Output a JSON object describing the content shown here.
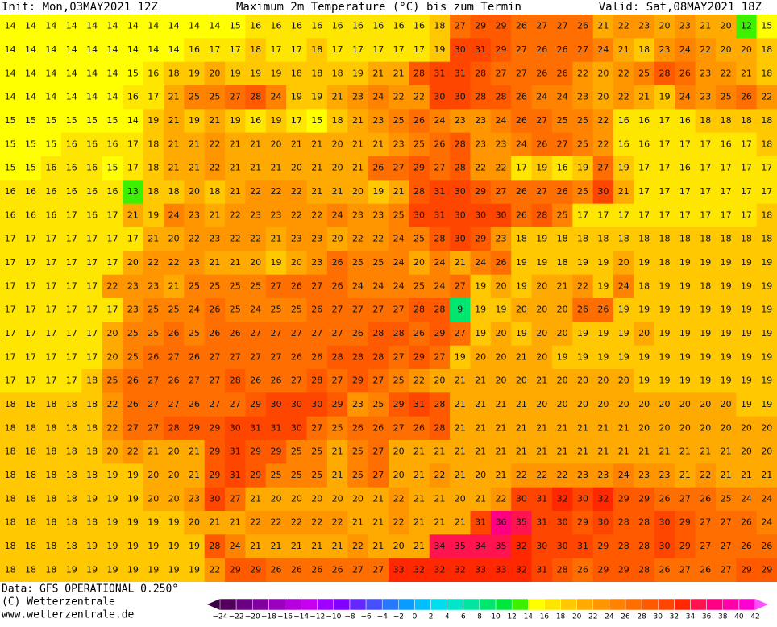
{
  "header": {
    "init": "Init: Mon,03MAY2021 12Z",
    "title": "Maximum 2m Temperature (°C) bis zum Termin",
    "valid": "Valid: Sat,08MAY2021 18Z"
  },
  "footer": {
    "data": "Data: GFS OPERATIONAL 0.250°",
    "copyright": "(C) Wetterzentrale",
    "url": "www.wetterzentrale.de"
  },
  "colorbar": {
    "labels": [
      "−24",
      "−22",
      "−20",
      "−18",
      "−16",
      "−14",
      "−12",
      "−10",
      "−8",
      "−6",
      "−4",
      "−2",
      "0",
      "2",
      "4",
      "6",
      "8",
      "10",
      "12",
      "14",
      "16",
      "18",
      "20",
      "22",
      "24",
      "26",
      "28",
      "30",
      "32",
      "34",
      "36",
      "38",
      "40",
      "42"
    ],
    "colors": [
      "#3c0046",
      "#50005a",
      "#6a0082",
      "#8200a0",
      "#9a00be",
      "#b400dc",
      "#c800f0",
      "#a000ff",
      "#8200ff",
      "#6428ff",
      "#4650ff",
      "#2878ff",
      "#0a9bff",
      "#00beff",
      "#00dcf0",
      "#00e6c8",
      "#00e6a0",
      "#00e66e",
      "#00e63c",
      "#3cf000",
      "#ffff00",
      "#ffe600",
      "#ffc800",
      "#ffaa00",
      "#ff9600",
      "#ff8200",
      "#ff6e00",
      "#ff5a00",
      "#ff4600",
      "#ff2800",
      "#ff1450",
      "#ff0082",
      "#ff00aa",
      "#ff00d2",
      "#ff50ff"
    ]
  },
  "map": {
    "rows": [
      [
        14,
        14,
        14,
        14,
        14,
        14,
        14,
        14,
        14,
        14,
        14,
        15,
        16,
        16,
        16,
        16,
        16,
        16,
        16,
        16,
        16,
        18,
        27,
        29,
        29,
        26,
        27,
        27,
        26,
        21,
        22,
        23,
        20,
        23,
        21,
        20,
        12,
        15
      ],
      [
        14,
        14,
        14,
        14,
        14,
        14,
        14,
        14,
        14,
        16,
        17,
        17,
        18,
        17,
        17,
        18,
        17,
        17,
        17,
        17,
        17,
        19,
        30,
        31,
        29,
        27,
        26,
        26,
        27,
        24,
        21,
        18,
        23,
        24,
        22,
        20,
        20,
        18
      ],
      [
        14,
        14,
        14,
        14,
        14,
        14,
        15,
        16,
        18,
        19,
        20,
        19,
        19,
        19,
        18,
        18,
        18,
        19,
        21,
        21,
        28,
        31,
        31,
        28,
        27,
        27,
        26,
        26,
        22,
        20,
        22,
        25,
        28,
        26,
        23,
        22,
        21,
        18
      ],
      [
        14,
        14,
        14,
        14,
        14,
        14,
        16,
        17,
        21,
        25,
        25,
        27,
        28,
        24,
        19,
        19,
        21,
        23,
        24,
        22,
        22,
        30,
        30,
        28,
        28,
        26,
        24,
        24,
        23,
        20,
        22,
        21,
        19,
        24,
        23,
        25,
        26,
        22
      ],
      [
        15,
        15,
        15,
        15,
        15,
        15,
        14,
        19,
        21,
        19,
        21,
        19,
        16,
        19,
        17,
        15,
        18,
        21,
        23,
        25,
        26,
        24,
        23,
        23,
        24,
        26,
        27,
        25,
        25,
        22,
        16,
        16,
        17,
        16,
        18,
        18,
        18,
        18
      ],
      [
        15,
        15,
        15,
        16,
        16,
        16,
        17,
        18,
        21,
        21,
        22,
        21,
        21,
        20,
        21,
        21,
        20,
        21,
        21,
        23,
        25,
        26,
        28,
        23,
        23,
        24,
        26,
        27,
        25,
        22,
        16,
        16,
        17,
        17,
        17,
        16,
        17,
        18
      ],
      [
        15,
        15,
        16,
        16,
        16,
        15,
        17,
        18,
        21,
        21,
        22,
        21,
        21,
        21,
        20,
        21,
        20,
        21,
        26,
        27,
        29,
        27,
        28,
        22,
        22,
        17,
        19,
        16,
        19,
        27,
        19,
        17,
        17,
        16,
        17,
        17,
        17,
        17
      ],
      [
        16,
        16,
        16,
        16,
        16,
        16,
        13,
        18,
        18,
        20,
        18,
        21,
        22,
        22,
        22,
        21,
        21,
        20,
        19,
        21,
        28,
        31,
        30,
        29,
        27,
        26,
        27,
        26,
        25,
        30,
        21,
        17,
        17,
        17,
        17,
        17,
        17,
        17
      ],
      [
        16,
        16,
        16,
        17,
        16,
        17,
        21,
        19,
        24,
        23,
        21,
        22,
        23,
        23,
        22,
        22,
        24,
        23,
        23,
        25,
        30,
        31,
        30,
        30,
        30,
        26,
        28,
        25,
        17,
        17,
        17,
        17,
        17,
        17,
        17,
        17,
        17,
        18
      ],
      [
        17,
        17,
        17,
        17,
        17,
        17,
        17,
        21,
        20,
        22,
        23,
        22,
        22,
        21,
        23,
        23,
        20,
        22,
        22,
        24,
        25,
        28,
        30,
        29,
        23,
        18,
        19,
        18,
        18,
        18,
        18,
        18,
        18,
        18,
        18,
        18,
        18,
        18
      ],
      [
        17,
        17,
        17,
        17,
        17,
        17,
        20,
        22,
        22,
        23,
        21,
        21,
        20,
        19,
        20,
        23,
        26,
        25,
        25,
        24,
        20,
        24,
        21,
        24,
        26,
        19,
        19,
        18,
        19,
        19,
        20,
        19,
        18,
        19,
        19,
        19,
        19,
        19
      ],
      [
        17,
        17,
        17,
        17,
        17,
        22,
        23,
        23,
        21,
        25,
        25,
        25,
        25,
        27,
        26,
        27,
        26,
        24,
        24,
        24,
        25,
        24,
        27,
        19,
        20,
        19,
        20,
        21,
        22,
        19,
        24,
        18,
        19,
        19,
        18,
        19,
        19,
        19
      ],
      [
        17,
        17,
        17,
        17,
        17,
        17,
        23,
        25,
        25,
        24,
        26,
        25,
        24,
        25,
        25,
        26,
        27,
        27,
        27,
        27,
        28,
        28,
        9,
        19,
        19,
        20,
        20,
        20,
        26,
        26,
        19,
        19,
        19,
        19,
        19,
        19,
        19,
        19
      ],
      [
        17,
        17,
        17,
        17,
        17,
        20,
        25,
        25,
        26,
        25,
        26,
        26,
        27,
        27,
        27,
        27,
        27,
        26,
        28,
        28,
        26,
        29,
        27,
        19,
        20,
        19,
        20,
        20,
        19,
        19,
        19,
        20,
        19,
        19,
        19,
        19,
        19,
        19
      ],
      [
        17,
        17,
        17,
        17,
        17,
        20,
        25,
        26,
        27,
        26,
        27,
        27,
        27,
        27,
        26,
        26,
        28,
        28,
        28,
        27,
        29,
        27,
        19,
        20,
        20,
        21,
        20,
        19,
        19,
        19,
        19,
        19,
        19,
        19,
        19,
        19,
        19,
        19
      ],
      [
        17,
        17,
        17,
        17,
        18,
        25,
        26,
        27,
        26,
        27,
        27,
        28,
        26,
        26,
        27,
        28,
        27,
        29,
        27,
        25,
        22,
        20,
        21,
        21,
        20,
        20,
        21,
        20,
        20,
        20,
        20,
        19,
        19,
        19,
        19,
        19,
        19,
        19
      ],
      [
        18,
        18,
        18,
        18,
        18,
        22,
        26,
        27,
        27,
        26,
        27,
        27,
        29,
        30,
        30,
        30,
        29,
        23,
        25,
        29,
        31,
        28,
        21,
        21,
        21,
        21,
        20,
        20,
        20,
        20,
        20,
        20,
        20,
        20,
        20,
        20,
        19,
        19
      ],
      [
        18,
        18,
        18,
        18,
        18,
        22,
        27,
        27,
        28,
        29,
        29,
        30,
        31,
        31,
        30,
        27,
        25,
        26,
        26,
        27,
        26,
        28,
        21,
        21,
        21,
        21,
        21,
        21,
        21,
        21,
        21,
        20,
        20,
        20,
        20,
        20,
        20,
        20
      ],
      [
        18,
        18,
        18,
        18,
        18,
        20,
        22,
        21,
        20,
        21,
        29,
        31,
        29,
        29,
        25,
        25,
        21,
        25,
        27,
        20,
        21,
        21,
        21,
        21,
        21,
        21,
        21,
        21,
        21,
        21,
        21,
        21,
        21,
        21,
        21,
        21,
        20,
        20
      ],
      [
        18,
        18,
        18,
        18,
        18,
        19,
        19,
        20,
        20,
        21,
        29,
        31,
        29,
        25,
        25,
        25,
        21,
        25,
        27,
        20,
        21,
        22,
        21,
        20,
        21,
        22,
        22,
        22,
        23,
        23,
        24,
        23,
        23,
        21,
        22,
        21,
        21,
        21
      ],
      [
        18,
        18,
        18,
        18,
        19,
        19,
        19,
        20,
        20,
        23,
        30,
        27,
        21,
        20,
        20,
        20,
        20,
        20,
        21,
        22,
        21,
        21,
        20,
        21,
        22,
        30,
        31,
        32,
        30,
        32,
        29,
        29,
        26,
        27,
        26,
        25,
        24,
        24
      ],
      [
        18,
        18,
        18,
        18,
        18,
        19,
        19,
        19,
        19,
        20,
        21,
        21,
        22,
        22,
        22,
        22,
        22,
        21,
        21,
        22,
        21,
        21,
        21,
        31,
        36,
        35,
        31,
        30,
        29,
        30,
        28,
        28,
        30,
        29,
        27,
        27,
        26,
        24
      ],
      [
        18,
        18,
        18,
        18,
        19,
        19,
        19,
        19,
        19,
        19,
        28,
        24,
        21,
        21,
        21,
        21,
        21,
        22,
        21,
        20,
        21,
        34,
        35,
        34,
        35,
        32,
        30,
        30,
        31,
        29,
        28,
        28,
        30,
        29,
        27,
        27,
        26,
        26
      ],
      [
        18,
        18,
        18,
        19,
        19,
        19,
        19,
        19,
        19,
        19,
        22,
        29,
        29,
        26,
        26,
        26,
        26,
        27,
        27,
        33,
        32,
        32,
        32,
        33,
        33,
        32,
        31,
        28,
        26,
        29,
        29,
        28,
        26,
        27,
        26,
        27,
        29,
        29
      ]
    ]
  }
}
